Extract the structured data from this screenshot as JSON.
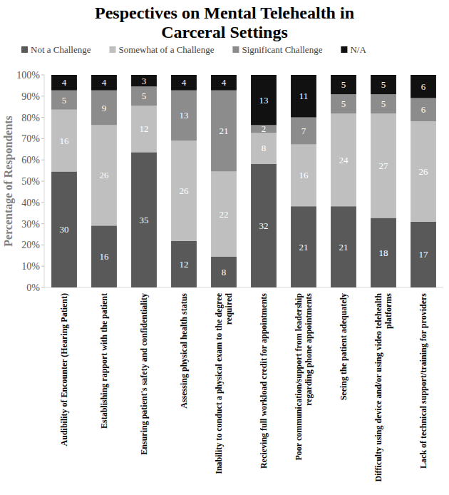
{
  "chart_data": {
    "type": "bar",
    "title": "Pespectives on Mental Telehealth in Carceral Settings",
    "y_label": "Percentage of Respondents",
    "stacked": "percent",
    "data_labels": true,
    "grid": false,
    "legend": "top",
    "categories": [
      "Audibility of Encounter (Hearing Patient)",
      "Establishing rapport with the patient",
      "Ensuring patient's safety and confidentiality",
      "Assessing physical health status",
      "Inability to conduct a physical exam to the degree required",
      "Recieving full workload credit for appointments",
      "Poor communication/support from leadership regarding phone appointments",
      "Seeing the patient adequately",
      "Difficulty using device and/or using video telehealth platforms",
      "Lack of technical support/training for providers"
    ],
    "series": [
      {
        "name": "Not a Challenge",
        "color": "#595959",
        "values": [
          30,
          16,
          35,
          12,
          8,
          32,
          21,
          21,
          18,
          17
        ]
      },
      {
        "name": "Somewhat of a Challenge",
        "color": "#bfbfbf",
        "values": [
          16,
          26,
          12,
          26,
          22,
          8,
          16,
          24,
          27,
          26
        ]
      },
      {
        "name": "Significant Challenge",
        "color": "#8c8c8c",
        "values": [
          5,
          9,
          5,
          13,
          21,
          2,
          7,
          5,
          5,
          6
        ]
      },
      {
        "name": "N/A",
        "color": "#111111",
        "values": [
          4,
          4,
          3,
          4,
          4,
          13,
          11,
          5,
          5,
          6
        ]
      }
    ],
    "ylim": [
      0,
      100
    ],
    "yticks": [
      {
        "value": 0,
        "label": "0%"
      },
      {
        "value": 10,
        "label": "10%"
      },
      {
        "value": 20,
        "label": "20%"
      },
      {
        "value": 30,
        "label": "30%"
      },
      {
        "value": 40,
        "label": "40%"
      },
      {
        "value": 50,
        "label": "50%"
      },
      {
        "value": 60,
        "label": "60%"
      },
      {
        "value": 70,
        "label": "70%"
      },
      {
        "value": 80,
        "label": "80%"
      },
      {
        "value": 90,
        "label": "90%"
      },
      {
        "value": 100,
        "label": "100%"
      }
    ]
  }
}
